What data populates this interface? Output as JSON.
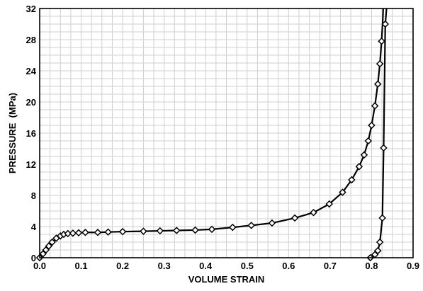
{
  "chart_data": {
    "type": "line",
    "xlabel": "VOLUME STRAIN",
    "ylabel": "PRESSURE  (MPa)",
    "xlim": [
      0.0,
      0.9
    ],
    "ylim": [
      0,
      32
    ],
    "xticks": [
      0.0,
      0.1,
      0.2,
      0.3,
      0.4,
      0.5,
      0.6,
      0.7,
      0.8,
      0.9
    ],
    "xtick_labels": [
      "0.0",
      "0.1",
      "0.2",
      "0.3",
      "0.4",
      "0.5",
      "0.6",
      "0.7",
      "0.8",
      "0.9"
    ],
    "yticks": [
      0,
      4,
      8,
      12,
      16,
      20,
      24,
      28,
      32
    ],
    "ytick_labels": [
      "0",
      "4",
      "8",
      "12",
      "16",
      "20",
      "24",
      "28",
      "32"
    ],
    "minor_grid": {
      "x_step": 0.025,
      "y_step": 1
    },
    "grid": true,
    "colors": {
      "line": "#000000",
      "marker_fill": "#ffffff",
      "grid": "#cfcfcf"
    },
    "marker": "diamond",
    "series": [
      {
        "x": [
          0.0,
          0.008,
          0.015,
          0.022,
          0.03,
          0.04,
          0.05,
          0.058,
          0.068,
          0.08,
          0.094,
          0.11,
          0.14,
          0.165,
          0.2,
          0.25,
          0.29,
          0.33,
          0.375,
          0.415,
          0.465,
          0.51,
          0.56,
          0.615,
          0.66,
          0.698,
          0.73,
          0.752,
          0.77,
          0.782,
          0.792,
          0.8,
          0.808,
          0.815,
          0.82,
          0.824,
          0.827,
          0.828
        ],
        "y": [
          0.0,
          0.5,
          1.0,
          1.5,
          2.0,
          2.5,
          2.8,
          3.0,
          3.1,
          3.15,
          3.2,
          3.25,
          3.25,
          3.3,
          3.35,
          3.4,
          3.45,
          3.5,
          3.55,
          3.65,
          3.9,
          4.15,
          4.45,
          5.1,
          5.8,
          6.9,
          8.4,
          10.0,
          11.7,
          13.2,
          15.0,
          17.0,
          19.5,
          22.3,
          24.9,
          27.8,
          30.5,
          32
        ],
        "markers": [
          true,
          true,
          true,
          true,
          true,
          true,
          true,
          true,
          true,
          true,
          true,
          true,
          true,
          true,
          true,
          true,
          true,
          true,
          true,
          true,
          true,
          true,
          true,
          true,
          true,
          true,
          true,
          true,
          true,
          true,
          true,
          true,
          true,
          true,
          true,
          true,
          false,
          false
        ]
      },
      {
        "x": [
          0.797,
          0.808,
          0.815,
          0.82,
          0.826,
          0.829,
          0.833,
          0.836
        ],
        "y": [
          0.0,
          0.4,
          0.9,
          2.0,
          5.1,
          14.1,
          30.0,
          32
        ],
        "markers": [
          true,
          true,
          true,
          true,
          true,
          true,
          true,
          false
        ]
      }
    ]
  }
}
